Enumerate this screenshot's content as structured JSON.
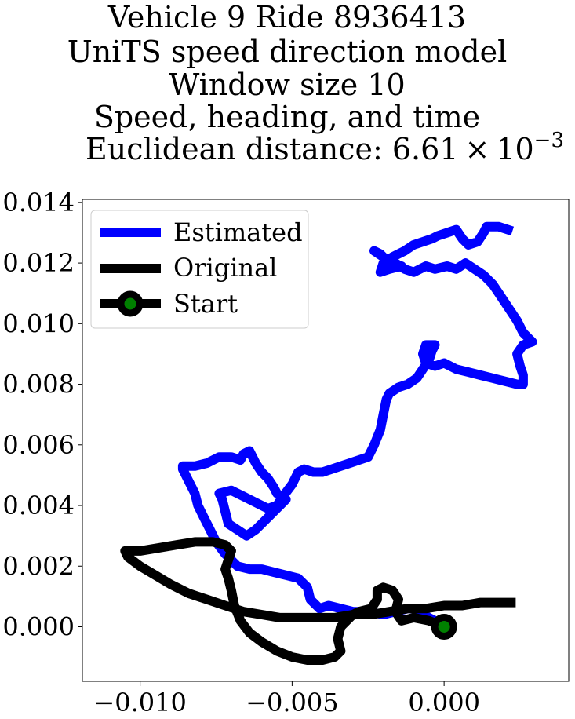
{
  "chart_data": {
    "type": "line",
    "title_lines": [
      "Vehicle 9 Ride 8936413",
      "UniTS speed direction model",
      "Window size 10",
      "Speed, heading, and time"
    ],
    "title_distance_prefix": "Euclidean distance: 6.61",
    "title_distance_times": "×",
    "title_distance_base": "10",
    "title_distance_exponent": "−3",
    "xlim": [
      -0.0119,
      0.0041
    ],
    "ylim": [
      -0.0018,
      0.0141
    ],
    "x_ticks": [
      -0.01,
      -0.005,
      0.0
    ],
    "x_tick_labels": [
      "−0.010",
      "−0.005",
      "0.000"
    ],
    "y_ticks": [
      0.0,
      0.002,
      0.004,
      0.006,
      0.008,
      0.01,
      0.012,
      0.014
    ],
    "y_tick_labels": [
      "0.000",
      "0.002",
      "0.004",
      "0.006",
      "0.008",
      "0.010",
      "0.012",
      "0.014"
    ],
    "grid": false,
    "legend_placement": "top-left",
    "legend": [
      "Estimated",
      "Original",
      "Start"
    ],
    "series": [
      {
        "name": "Estimated",
        "color": "#0000ff",
        "points": [
          [
            0.0,
            0.0
          ],
          [
            -0.0003,
            0.0002
          ],
          [
            -0.0007,
            0.0004
          ],
          [
            -0.0009,
            0.0006
          ],
          [
            -0.0012,
            0.0006
          ],
          [
            -0.0016,
            0.0005
          ],
          [
            -0.002,
            0.0004
          ],
          [
            -0.0025,
            0.0005
          ],
          [
            -0.003,
            0.0005
          ],
          [
            -0.0034,
            0.0006
          ],
          [
            -0.0038,
            0.0007
          ],
          [
            -0.0041,
            0.0006
          ],
          [
            -0.0044,
            0.0009
          ],
          [
            -0.0045,
            0.0013
          ],
          [
            -0.0048,
            0.0016
          ],
          [
            -0.0052,
            0.0017
          ],
          [
            -0.0056,
            0.0018
          ],
          [
            -0.006,
            0.0019
          ],
          [
            -0.0064,
            0.0019
          ],
          [
            -0.0068,
            0.002
          ],
          [
            -0.0072,
            0.0024
          ],
          [
            -0.0075,
            0.0028
          ],
          [
            -0.0077,
            0.0032
          ],
          [
            -0.0079,
            0.0036
          ],
          [
            -0.0081,
            0.004
          ],
          [
            -0.0082,
            0.0044
          ],
          [
            -0.0084,
            0.0048
          ],
          [
            -0.0086,
            0.0052
          ],
          [
            -0.0086,
            0.0053
          ],
          [
            -0.0082,
            0.0053
          ],
          [
            -0.0078,
            0.0054
          ],
          [
            -0.0074,
            0.0056
          ],
          [
            -0.007,
            0.0056
          ],
          [
            -0.0067,
            0.0055
          ],
          [
            -0.0066,
            0.0057
          ],
          [
            -0.0064,
            0.0058
          ],
          [
            -0.0062,
            0.0054
          ],
          [
            -0.006,
            0.0051
          ],
          [
            -0.0058,
            0.0049
          ],
          [
            -0.0056,
            0.0046
          ],
          [
            -0.0055,
            0.0044
          ],
          [
            -0.0052,
            0.0042
          ],
          [
            -0.0054,
            0.004
          ],
          [
            -0.0058,
            0.0036
          ],
          [
            -0.0062,
            0.0032
          ],
          [
            -0.0065,
            0.003
          ],
          [
            -0.0068,
            0.0032
          ],
          [
            -0.0071,
            0.0034
          ],
          [
            -0.0072,
            0.0038
          ],
          [
            -0.0073,
            0.0042
          ],
          [
            -0.0074,
            0.0044
          ],
          [
            -0.007,
            0.0045
          ],
          [
            -0.0066,
            0.0043
          ],
          [
            -0.0062,
            0.0041
          ],
          [
            -0.0058,
            0.0039
          ],
          [
            -0.0055,
            0.004
          ],
          [
            -0.0053,
            0.0043
          ],
          [
            -0.005,
            0.0047
          ],
          [
            -0.0048,
            0.0051
          ],
          [
            -0.0046,
            0.0052
          ],
          [
            -0.0043,
            0.0051
          ],
          [
            -0.004,
            0.0051
          ],
          [
            -0.0037,
            0.0052
          ],
          [
            -0.0034,
            0.0053
          ],
          [
            -0.0031,
            0.0054
          ],
          [
            -0.0028,
            0.0055
          ],
          [
            -0.0025,
            0.0056
          ],
          [
            -0.0023,
            0.006
          ],
          [
            -0.0021,
            0.0065
          ],
          [
            -0.002,
            0.007
          ],
          [
            -0.0019,
            0.0075
          ],
          [
            -0.0018,
            0.0077
          ],
          [
            -0.0015,
            0.0079
          ],
          [
            -0.0012,
            0.008
          ],
          [
            -0.0009,
            0.0082
          ],
          [
            -0.0007,
            0.0085
          ],
          [
            -0.0005,
            0.0088
          ],
          [
            -0.0004,
            0.0091
          ],
          [
            -0.0003,
            0.0093
          ],
          [
            -0.0006,
            0.0093
          ],
          [
            -0.0007,
            0.009
          ],
          [
            -0.0006,
            0.0087
          ],
          [
            -0.0003,
            0.0086
          ],
          [
            0.0,
            0.0087
          ],
          [
            0.0004,
            0.0085
          ],
          [
            0.0008,
            0.0084
          ],
          [
            0.0012,
            0.0083
          ],
          [
            0.0016,
            0.0082
          ],
          [
            0.002,
            0.0081
          ],
          [
            0.0024,
            0.008
          ],
          [
            0.0026,
            0.008
          ],
          [
            0.0026,
            0.0083
          ],
          [
            0.0025,
            0.0086
          ],
          [
            0.0024,
            0.009
          ],
          [
            0.0026,
            0.0093
          ],
          [
            0.0029,
            0.0094
          ],
          [
            0.0026,
            0.0097
          ],
          [
            0.0024,
            0.0101
          ],
          [
            0.0022,
            0.0104
          ],
          [
            0.002,
            0.0107
          ],
          [
            0.0018,
            0.011
          ],
          [
            0.0016,
            0.0113
          ],
          [
            0.0013,
            0.0116
          ],
          [
            0.001,
            0.0118
          ],
          [
            0.0007,
            0.012
          ],
          [
            0.0004,
            0.0118
          ],
          [
            0.0001,
            0.0119
          ],
          [
            -0.0003,
            0.0118
          ],
          [
            -0.0006,
            0.0119
          ],
          [
            -0.001,
            0.0117
          ],
          [
            -0.0013,
            0.0118
          ],
          [
            -0.0016,
            0.012
          ],
          [
            -0.0019,
            0.0121
          ],
          [
            -0.0021,
            0.0123
          ],
          [
            -0.0023,
            0.0124
          ],
          [
            -0.002,
            0.0122
          ],
          [
            -0.0017,
            0.012
          ],
          [
            -0.0014,
            0.0119
          ],
          [
            -0.0018,
            0.0118
          ],
          [
            -0.0021,
            0.0117
          ],
          [
            -0.002,
            0.012
          ],
          [
            -0.0017,
            0.0122
          ],
          [
            -0.0013,
            0.0124
          ],
          [
            -0.001,
            0.0126
          ],
          [
            -0.0007,
            0.0127
          ],
          [
            -0.0004,
            0.0128
          ],
          [
            -0.0002,
            0.0129
          ],
          [
            0.0001,
            0.013
          ],
          [
            0.0004,
            0.0131
          ],
          [
            0.0006,
            0.0128
          ],
          [
            0.0008,
            0.0126
          ],
          [
            0.0011,
            0.0127
          ],
          [
            0.0013,
            0.013
          ],
          [
            0.0014,
            0.0132
          ],
          [
            0.0018,
            0.0132
          ],
          [
            0.0021,
            0.0131
          ]
        ]
      },
      {
        "name": "Original",
        "color": "#000000",
        "points": [
          [
            0.0,
            0.0
          ],
          [
            -0.0005,
            0.0002
          ],
          [
            -0.001,
            0.0003
          ],
          [
            -0.0014,
            0.0002
          ],
          [
            -0.0016,
            0.0005
          ],
          [
            -0.0015,
            0.0009
          ],
          [
            -0.0017,
            0.0012
          ],
          [
            -0.002,
            0.0013
          ],
          [
            -0.0022,
            0.0012
          ],
          [
            -0.0022,
            0.0009
          ],
          [
            -0.0024,
            0.0006
          ],
          [
            -0.0028,
            0.0005
          ],
          [
            -0.003,
            0.0004
          ],
          [
            -0.0032,
            0.0002
          ],
          [
            -0.0034,
            0.0
          ],
          [
            -0.0035,
            -0.0004
          ],
          [
            -0.0034,
            -0.0008
          ],
          [
            -0.0036,
            -0.001
          ],
          [
            -0.004,
            -0.0011
          ],
          [
            -0.0045,
            -0.0011
          ],
          [
            -0.005,
            -0.001
          ],
          [
            -0.0055,
            -0.0008
          ],
          [
            -0.006,
            -0.0005
          ],
          [
            -0.0064,
            -0.0002
          ],
          [
            -0.0067,
            0.0002
          ],
          [
            -0.0069,
            0.0007
          ],
          [
            -0.007,
            0.0012
          ],
          [
            -0.0071,
            0.0016
          ],
          [
            -0.0072,
            0.0019
          ],
          [
            -0.0071,
            0.0022
          ],
          [
            -0.007,
            0.0025
          ],
          [
            -0.0072,
            0.0027
          ],
          [
            -0.0076,
            0.0028
          ],
          [
            -0.0082,
            0.0028
          ],
          [
            -0.0088,
            0.0027
          ],
          [
            -0.0094,
            0.0026
          ],
          [
            -0.01,
            0.0025
          ],
          [
            -0.0105,
            0.0025
          ],
          [
            -0.0104,
            0.0023
          ],
          [
            -0.01,
            0.002
          ],
          [
            -0.0095,
            0.0017
          ],
          [
            -0.009,
            0.0014
          ],
          [
            -0.0084,
            0.0011
          ],
          [
            -0.0078,
            0.0009
          ],
          [
            -0.0072,
            0.0007
          ],
          [
            -0.0066,
            0.0005
          ],
          [
            -0.006,
            0.0004
          ],
          [
            -0.0054,
            0.0003
          ],
          [
            -0.0048,
            0.0003
          ],
          [
            -0.0042,
            0.0003
          ],
          [
            -0.0036,
            0.0003
          ],
          [
            -0.003,
            0.0004
          ],
          [
            -0.0024,
            0.0004
          ],
          [
            -0.0018,
            0.0005
          ],
          [
            -0.0012,
            0.0006
          ],
          [
            -0.0006,
            0.0006
          ],
          [
            0.0,
            0.0007
          ],
          [
            0.0006,
            0.0007
          ],
          [
            0.0012,
            0.0008
          ],
          [
            0.0018,
            0.0008
          ],
          [
            0.0022,
            0.0008
          ]
        ]
      }
    ],
    "start_point": [
      0.0,
      0.0
    ],
    "start_color": "#008000"
  }
}
